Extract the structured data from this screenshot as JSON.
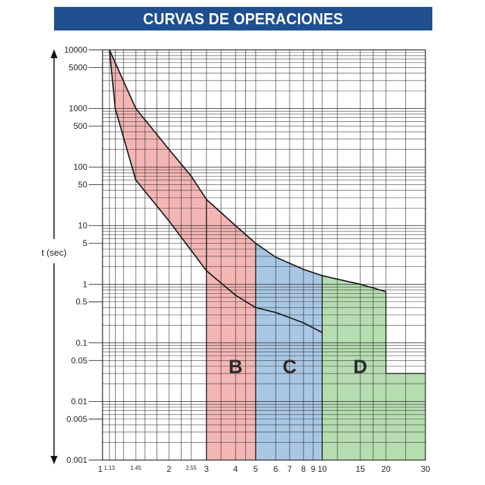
{
  "chart_data": {
    "type": "area",
    "title": "CURVAS DE OPERACIONES",
    "ylabel": "t (sec)",
    "xlabel": "",
    "x_scale": "linear-ticks",
    "y_scale": "log",
    "ylim": [
      0.001,
      10000
    ],
    "xlim": [
      1,
      30
    ],
    "grid": true,
    "x_ticks": [
      {
        "value": 1,
        "label": "1",
        "small": false
      },
      {
        "value": 1.13,
        "label": "1.13",
        "small": true
      },
      {
        "value": 1.45,
        "label": "1.45",
        "small": true
      },
      {
        "value": 2,
        "label": "2",
        "small": false
      },
      {
        "value": 2.55,
        "label": "2.55",
        "small": true
      },
      {
        "value": 3,
        "label": "3",
        "small": false
      },
      {
        "value": 4,
        "label": "4",
        "small": false
      },
      {
        "value": 5,
        "label": "5",
        "small": false
      },
      {
        "value": 6,
        "label": "6",
        "small": false
      },
      {
        "value": 7,
        "label": "7",
        "small": false
      },
      {
        "value": 8,
        "label": "8",
        "small": false
      },
      {
        "value": 9,
        "label": "9",
        "small": false
      },
      {
        "value": 10,
        "label": "10",
        "small": false
      },
      {
        "value": 15,
        "label": "15",
        "small": false
      },
      {
        "value": 20,
        "label": "20",
        "small": false
      },
      {
        "value": 30,
        "label": "30",
        "small": false
      }
    ],
    "y_ticks": [
      {
        "value": 10000,
        "label": "10000"
      },
      {
        "value": 5000,
        "label": "5000"
      },
      {
        "value": 1000,
        "label": "1000"
      },
      {
        "value": 500,
        "label": "500"
      },
      {
        "value": 100,
        "label": "100"
      },
      {
        "value": 50,
        "label": "50"
      },
      {
        "value": 10,
        "label": "10"
      },
      {
        "value": 5,
        "label": "5"
      },
      {
        "value": 1,
        "label": "1"
      },
      {
        "value": 0.5,
        "label": "0.5"
      },
      {
        "value": 0.1,
        "label": "0.1"
      },
      {
        "value": 0.05,
        "label": "0.05"
      },
      {
        "value": 0.01,
        "label": "0.01"
      },
      {
        "value": 0.005,
        "label": "0.005"
      },
      {
        "value": 0.001,
        "label": "0.001"
      }
    ],
    "regions": [
      {
        "label": "B",
        "x_start": 3,
        "x_end": 5,
        "color": "#f4b6b4"
      },
      {
        "label": "C",
        "x_start": 5,
        "x_end": 10,
        "color": "#a9c7e4"
      },
      {
        "label": "D",
        "x_start": 10,
        "x_end": 20,
        "color": "#b5ddb0"
      },
      {
        "label": "",
        "x_start": 20,
        "x_end": 30,
        "color": "#b5ddb0"
      }
    ],
    "band_color": "#f4b6b4",
    "series": [
      {
        "role": "upper",
        "points": [
          [
            1.13,
            10000
          ],
          [
            1.45,
            1000
          ],
          [
            2,
            200
          ],
          [
            2.55,
            70
          ],
          [
            3,
            28
          ],
          [
            4,
            10
          ],
          [
            5,
            5
          ],
          [
            6,
            2.9
          ],
          [
            8,
            1.8
          ],
          [
            10,
            1.4
          ],
          [
            15,
            1.0
          ],
          [
            20,
            0.75
          ]
        ]
      },
      {
        "role": "lower",
        "points": [
          [
            1.13,
            10000
          ],
          [
            1.2,
            1000
          ],
          [
            1.45,
            60
          ],
          [
            2,
            12
          ],
          [
            3,
            1.7
          ],
          [
            4,
            0.65
          ],
          [
            5,
            0.4
          ],
          [
            6,
            0.33
          ],
          [
            8,
            0.22
          ],
          [
            10,
            0.15
          ]
        ]
      }
    ],
    "region_labels": [
      {
        "text": "B",
        "x": 4,
        "y": 0.04
      },
      {
        "text": "C",
        "x": 7,
        "y": 0.04
      },
      {
        "text": "D",
        "x": 15,
        "y": 0.04
      }
    ],
    "step_levels": [
      {
        "x_start": 20,
        "x_end": 30,
        "y_top": 0.03
      }
    ]
  }
}
